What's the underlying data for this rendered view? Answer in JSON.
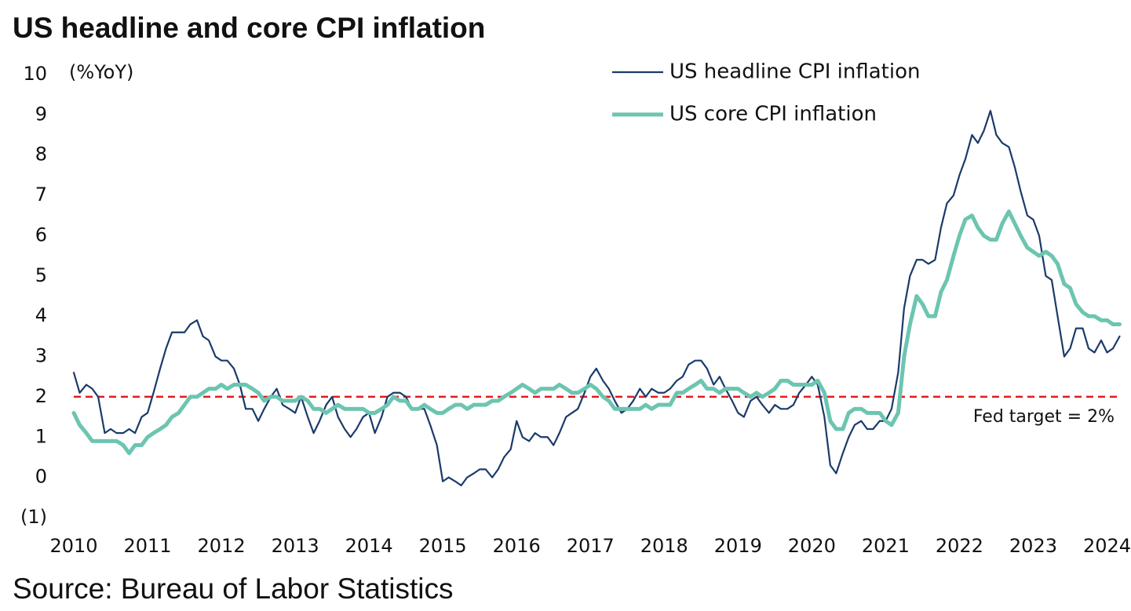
{
  "chart_data": {
    "type": "line",
    "title": "US headline and core CPI inflation",
    "y_axis_label": "(%YoY)",
    "source": "Source: Bureau of Labor Statistics",
    "xlim": [
      2010,
      2024.25
    ],
    "xticks": [
      2010,
      2011,
      2012,
      2013,
      2014,
      2015,
      2016,
      2017,
      2018,
      2019,
      2020,
      2021,
      2022,
      2023,
      2024
    ],
    "ylim": [
      -1,
      10
    ],
    "yticks": [
      {
        "value": -1,
        "label": "(1)"
      },
      0,
      1,
      2,
      3,
      4,
      5,
      6,
      7,
      8,
      9,
      10
    ],
    "grid": false,
    "legend_position": "top-right",
    "reference_line": {
      "value": 2,
      "label": "Fed target = 2%",
      "color": "#e31a1c"
    },
    "x": [
      2010,
      2010.08,
      2010.17,
      2010.25,
      2010.33,
      2010.42,
      2010.5,
      2010.58,
      2010.67,
      2010.75,
      2010.83,
      2010.92,
      2011,
      2011.08,
      2011.17,
      2011.25,
      2011.33,
      2011.42,
      2011.5,
      2011.58,
      2011.67,
      2011.75,
      2011.83,
      2011.92,
      2012,
      2012.08,
      2012.17,
      2012.25,
      2012.33,
      2012.42,
      2012.5,
      2012.58,
      2012.67,
      2012.75,
      2012.83,
      2012.92,
      2013,
      2013.08,
      2013.17,
      2013.25,
      2013.33,
      2013.42,
      2013.5,
      2013.58,
      2013.67,
      2013.75,
      2013.83,
      2013.92,
      2014,
      2014.08,
      2014.17,
      2014.25,
      2014.33,
      2014.42,
      2014.5,
      2014.58,
      2014.67,
      2014.75,
      2014.83,
      2014.92,
      2015,
      2015.08,
      2015.17,
      2015.25,
      2015.33,
      2015.42,
      2015.5,
      2015.58,
      2015.67,
      2015.75,
      2015.83,
      2015.92,
      2016,
      2016.08,
      2016.17,
      2016.25,
      2016.33,
      2016.42,
      2016.5,
      2016.58,
      2016.67,
      2016.75,
      2016.83,
      2016.92,
      2017,
      2017.08,
      2017.17,
      2017.25,
      2017.33,
      2017.42,
      2017.5,
      2017.58,
      2017.67,
      2017.75,
      2017.83,
      2017.92,
      2018,
      2018.08,
      2018.17,
      2018.25,
      2018.33,
      2018.42,
      2018.5,
      2018.58,
      2018.67,
      2018.75,
      2018.83,
      2018.92,
      2019,
      2019.08,
      2019.17,
      2019.25,
      2019.33,
      2019.42,
      2019.5,
      2019.58,
      2019.67,
      2019.75,
      2019.83,
      2019.92,
      2020,
      2020.08,
      2020.17,
      2020.25,
      2020.33,
      2020.42,
      2020.5,
      2020.58,
      2020.67,
      2020.75,
      2020.83,
      2020.92,
      2021,
      2021.08,
      2021.17,
      2021.25,
      2021.33,
      2021.42,
      2021.5,
      2021.58,
      2021.67,
      2021.75,
      2021.83,
      2021.92,
      2022,
      2022.08,
      2022.17,
      2022.25,
      2022.33,
      2022.42,
      2022.5,
      2022.58,
      2022.67,
      2022.75,
      2022.83,
      2022.92,
      2023,
      2023.08,
      2023.17,
      2023.25,
      2023.33,
      2023.42,
      2023.5,
      2023.58,
      2023.67,
      2023.75,
      2023.83,
      2023.92,
      2024,
      2024.08,
      2024.17
    ],
    "series": [
      {
        "name": "US headline CPI inflation",
        "color": "#1b3a6b",
        "width": 2.2,
        "values": [
          2.6,
          2.1,
          2.3,
          2.2,
          2.0,
          1.1,
          1.2,
          1.1,
          1.1,
          1.2,
          1.1,
          1.5,
          1.6,
          2.1,
          2.7,
          3.2,
          3.6,
          3.6,
          3.6,
          3.8,
          3.9,
          3.5,
          3.4,
          3.0,
          2.9,
          2.9,
          2.7,
          2.3,
          1.7,
          1.7,
          1.4,
          1.7,
          2.0,
          2.2,
          1.8,
          1.7,
          1.6,
          2.0,
          1.5,
          1.1,
          1.4,
          1.8,
          2.0,
          1.5,
          1.2,
          1.0,
          1.2,
          1.5,
          1.6,
          1.1,
          1.5,
          2.0,
          2.1,
          2.1,
          2.0,
          1.7,
          1.7,
          1.7,
          1.3,
          0.8,
          -0.1,
          0.0,
          -0.1,
          -0.2,
          0.0,
          0.1,
          0.2,
          0.2,
          0.0,
          0.2,
          0.5,
          0.7,
          1.4,
          1.0,
          0.9,
          1.1,
          1.0,
          1.0,
          0.8,
          1.1,
          1.5,
          1.6,
          1.7,
          2.1,
          2.5,
          2.7,
          2.4,
          2.2,
          1.9,
          1.6,
          1.7,
          1.9,
          2.2,
          2.0,
          2.2,
          2.1,
          2.1,
          2.2,
          2.4,
          2.5,
          2.8,
          2.9,
          2.9,
          2.7,
          2.3,
          2.5,
          2.2,
          1.9,
          1.6,
          1.5,
          1.9,
          2.0,
          1.8,
          1.6,
          1.8,
          1.7,
          1.7,
          1.8,
          2.1,
          2.3,
          2.5,
          2.3,
          1.5,
          0.3,
          0.1,
          0.6,
          1.0,
          1.3,
          1.4,
          1.2,
          1.2,
          1.4,
          1.4,
          1.7,
          2.6,
          4.2,
          5.0,
          5.4,
          5.4,
          5.3,
          5.4,
          6.2,
          6.8,
          7.0,
          7.5,
          7.9,
          8.5,
          8.3,
          8.6,
          9.1,
          8.5,
          8.3,
          8.2,
          7.7,
          7.1,
          6.5,
          6.4,
          6.0,
          5.0,
          4.9,
          4.0,
          3.0,
          3.2,
          3.7,
          3.7,
          3.2,
          3.1,
          3.4,
          3.1,
          3.2,
          3.5
        ]
      },
      {
        "name": "US core CPI inflation",
        "color": "#6cc5b0",
        "width": 5,
        "values": [
          1.6,
          1.3,
          1.1,
          0.9,
          0.9,
          0.9,
          0.9,
          0.9,
          0.8,
          0.6,
          0.8,
          0.8,
          1.0,
          1.1,
          1.2,
          1.3,
          1.5,
          1.6,
          1.8,
          2.0,
          2.0,
          2.1,
          2.2,
          2.2,
          2.3,
          2.2,
          2.3,
          2.3,
          2.3,
          2.2,
          2.1,
          1.9,
          2.0,
          2.0,
          1.9,
          1.9,
          1.9,
          2.0,
          1.9,
          1.7,
          1.7,
          1.6,
          1.7,
          1.8,
          1.7,
          1.7,
          1.7,
          1.7,
          1.6,
          1.6,
          1.7,
          1.8,
          2.0,
          1.9,
          1.9,
          1.7,
          1.7,
          1.8,
          1.7,
          1.6,
          1.6,
          1.7,
          1.8,
          1.8,
          1.7,
          1.8,
          1.8,
          1.8,
          1.9,
          1.9,
          2.0,
          2.1,
          2.2,
          2.3,
          2.2,
          2.1,
          2.2,
          2.2,
          2.2,
          2.3,
          2.2,
          2.1,
          2.1,
          2.2,
          2.3,
          2.2,
          2.0,
          1.9,
          1.7,
          1.7,
          1.7,
          1.7,
          1.7,
          1.8,
          1.7,
          1.8,
          1.8,
          1.8,
          2.1,
          2.1,
          2.2,
          2.3,
          2.4,
          2.2,
          2.2,
          2.1,
          2.2,
          2.2,
          2.2,
          2.1,
          2.0,
          2.1,
          2.0,
          2.1,
          2.2,
          2.4,
          2.4,
          2.3,
          2.3,
          2.3,
          2.3,
          2.4,
          2.1,
          1.4,
          1.2,
          1.2,
          1.6,
          1.7,
          1.7,
          1.6,
          1.6,
          1.6,
          1.4,
          1.3,
          1.6,
          3.0,
          3.8,
          4.5,
          4.3,
          4.0,
          4.0,
          4.6,
          4.9,
          5.5,
          6.0,
          6.4,
          6.5,
          6.2,
          6.0,
          5.9,
          5.9,
          6.3,
          6.6,
          6.3,
          6.0,
          5.7,
          5.6,
          5.5,
          5.6,
          5.5,
          5.3,
          4.8,
          4.7,
          4.3,
          4.1,
          4.0,
          4.0,
          3.9,
          3.9,
          3.8,
          3.8
        ]
      }
    ]
  }
}
